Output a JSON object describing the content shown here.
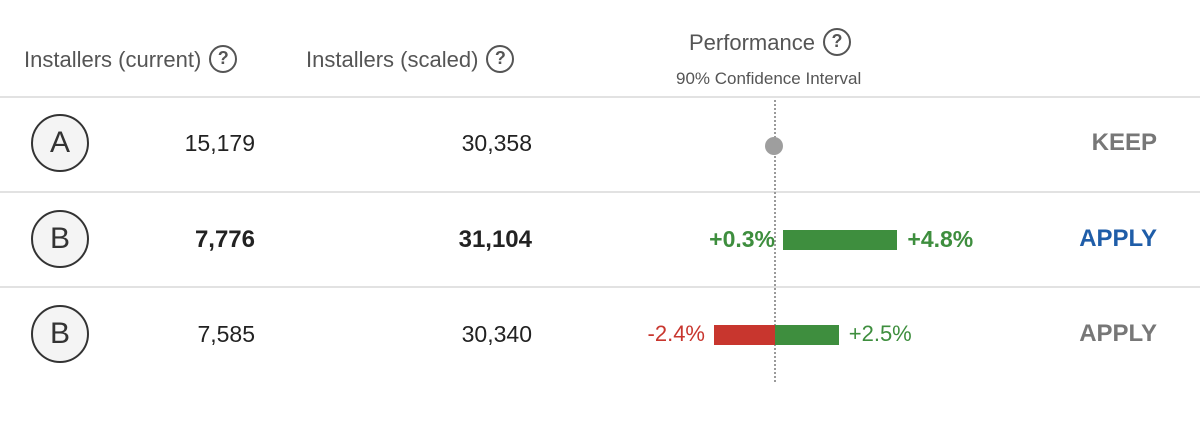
{
  "header": {
    "installers_current": "Installers (current)",
    "installers_scaled": "Installers (scaled)",
    "performance": "Performance",
    "confidence": "90% Confidence Interval",
    "help_glyph": "?"
  },
  "rows": [
    {
      "variant": "A",
      "installers_current": "15,179",
      "installers_scaled": "30,358",
      "ci_low": "",
      "ci_high": "",
      "ci_low_value": 0,
      "ci_high_value": 0,
      "action": "KEEP",
      "baseline": true
    },
    {
      "variant": "B",
      "installers_current": "7,776",
      "installers_scaled": "31,104",
      "ci_low": "+0.3%",
      "ci_high": "+4.8%",
      "ci_low_value": 0.3,
      "ci_high_value": 4.8,
      "action": "APPLY",
      "highlighted": true
    },
    {
      "variant": "B",
      "installers_current": "7,585",
      "installers_scaled": "30,340",
      "ci_low": "-2.4%",
      "ci_high": "+2.5%",
      "ci_low_value": -2.4,
      "ci_high_value": 2.5,
      "action": "APPLY",
      "highlighted": false
    }
  ],
  "colors": {
    "positive": "#3e8e3e",
    "negative": "#c8362e",
    "apply_active": "#1f5da8",
    "apply_inactive": "#777777"
  }
}
